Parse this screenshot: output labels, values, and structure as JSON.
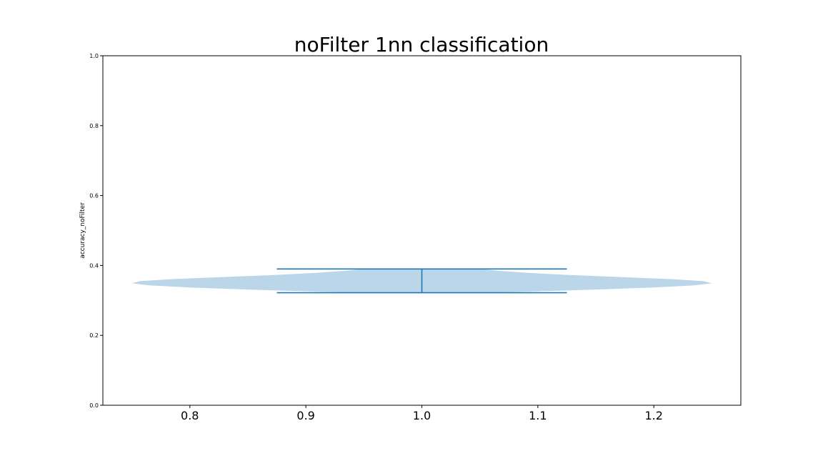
{
  "chart_data": {
    "type": "violin",
    "title": "noFilter 1nn classification",
    "xlabel": "",
    "ylabel": "accuracy_noFilter",
    "xlim": [
      0.725,
      1.275
    ],
    "ylim": [
      0.0,
      1.0
    ],
    "x_ticks": [
      "0.8",
      "0.9",
      "1.0",
      "1.1",
      "1.2"
    ],
    "y_ticks": [
      "0.0",
      "0.2",
      "0.4",
      "0.6",
      "0.8",
      "1.0"
    ],
    "grid": false,
    "legend": "none",
    "series": [
      {
        "position": 1.0,
        "min": 0.322,
        "max": 0.39,
        "density_profile": [
          {
            "y": 0.322,
            "half_width": 0.06
          },
          {
            "y": 0.326,
            "half_width": 0.1
          },
          {
            "y": 0.331,
            "half_width": 0.15
          },
          {
            "y": 0.337,
            "half_width": 0.2
          },
          {
            "y": 0.343,
            "half_width": 0.235
          },
          {
            "y": 0.349,
            "half_width": 0.25
          },
          {
            "y": 0.355,
            "half_width": 0.243
          },
          {
            "y": 0.361,
            "half_width": 0.215
          },
          {
            "y": 0.367,
            "half_width": 0.17
          },
          {
            "y": 0.373,
            "half_width": 0.125
          },
          {
            "y": 0.379,
            "half_width": 0.09
          },
          {
            "y": 0.385,
            "half_width": 0.065
          },
          {
            "y": 0.39,
            "half_width": 0.05
          }
        ],
        "cap_half_width": 0.125
      }
    ],
    "colors": {
      "body": "#1f77b4",
      "body_opacity": 0.3,
      "lines": "#1f77b4"
    }
  }
}
